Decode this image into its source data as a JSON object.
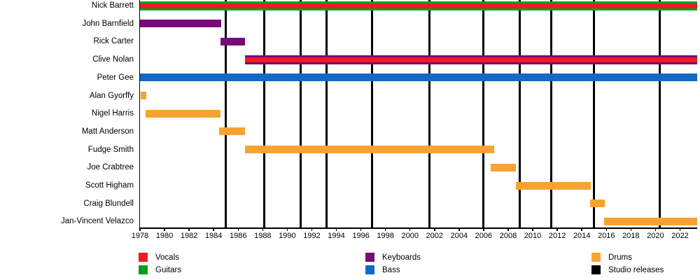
{
  "chart_data": {
    "type": "bar",
    "variant": "band-membership-gantt-timeline",
    "title": "",
    "xlabel": "",
    "ylabel": "",
    "grid": false,
    "x_axis": {
      "min": 1978,
      "max": 2023.4,
      "ticks": [
        1978,
        1980,
        1982,
        1984,
        1986,
        1988,
        1990,
        1992,
        1994,
        1996,
        1998,
        2000,
        2002,
        2004,
        2006,
        2008,
        2010,
        2012,
        2014,
        2016,
        2018,
        2020,
        2022
      ]
    },
    "members": [
      {
        "name": "Nick Barrett",
        "intervals": [
          {
            "role": "guitars",
            "start": 1978,
            "end": 2023.4
          },
          {
            "role": "vocals",
            "start": 1978,
            "end": 2023.4
          }
        ]
      },
      {
        "name": "John Barnfield",
        "intervals": [
          {
            "role": "keyboards",
            "start": 1978,
            "end": 1984.6
          }
        ]
      },
      {
        "name": "Rick Carter",
        "intervals": [
          {
            "role": "keyboards",
            "start": 1984.55,
            "end": 1986.55
          }
        ]
      },
      {
        "name": "Clive Nolan",
        "intervals": [
          {
            "role": "keyboards",
            "start": 1986.55,
            "end": 2023.4
          },
          {
            "role": "vocals",
            "start": 1986.55,
            "end": 2023.4
          }
        ]
      },
      {
        "name": "Peter Gee",
        "intervals": [
          {
            "role": "bass",
            "start": 1978,
            "end": 2023.4
          }
        ]
      },
      {
        "name": "Alan Gyorffy",
        "intervals": [
          {
            "role": "drums",
            "start": 1978.05,
            "end": 1978.5
          }
        ]
      },
      {
        "name": "Nigel Harris",
        "intervals": [
          {
            "role": "drums",
            "start": 1978.45,
            "end": 1984.55
          }
        ]
      },
      {
        "name": "Matt Anderson",
        "intervals": [
          {
            "role": "drums",
            "start": 1984.45,
            "end": 1986.55
          }
        ]
      },
      {
        "name": "Fudge Smith",
        "intervals": [
          {
            "role": "drums",
            "start": 1986.55,
            "end": 2006.85
          }
        ]
      },
      {
        "name": "Joe Crabtree",
        "intervals": [
          {
            "role": "drums",
            "start": 2006.6,
            "end": 2008.65
          }
        ]
      },
      {
        "name": "Scott Higham",
        "intervals": [
          {
            "role": "drums",
            "start": 2008.65,
            "end": 2014.75
          }
        ]
      },
      {
        "name": "Craig Blundell",
        "intervals": [
          {
            "role": "drums",
            "start": 2014.7,
            "end": 2015.85
          }
        ]
      },
      {
        "name": "Jan-Vincent Velazco",
        "intervals": [
          {
            "role": "drums",
            "start": 2015.8,
            "end": 2023.4
          }
        ]
      }
    ],
    "studio_releases": [
      1985.0,
      1988.1,
      1991.1,
      1993.2,
      1996.9,
      2001.6,
      2006.0,
      2008.95,
      2011.5,
      2015.0,
      2020.35
    ],
    "colors": {
      "vocals": "#ED1C24",
      "guitars": "#00A01E",
      "keyboards": "#780A78",
      "bass": "#1269C7",
      "drums": "#F9A232",
      "studio_releases": "#000000"
    },
    "legend": {
      "position": "bottom",
      "columns": [
        {
          "items": [
            {
              "label": "Vocals",
              "role": "vocals"
            },
            {
              "label": "Guitars",
              "role": "guitars"
            }
          ]
        },
        {
          "items": [
            {
              "label": "Keyboards",
              "role": "keyboards"
            },
            {
              "label": "Bass",
              "role": "bass"
            }
          ]
        },
        {
          "items": [
            {
              "label": "Drums",
              "role": "drums"
            },
            {
              "label": "Studio releases",
              "role": "studio_releases"
            }
          ]
        }
      ]
    }
  }
}
